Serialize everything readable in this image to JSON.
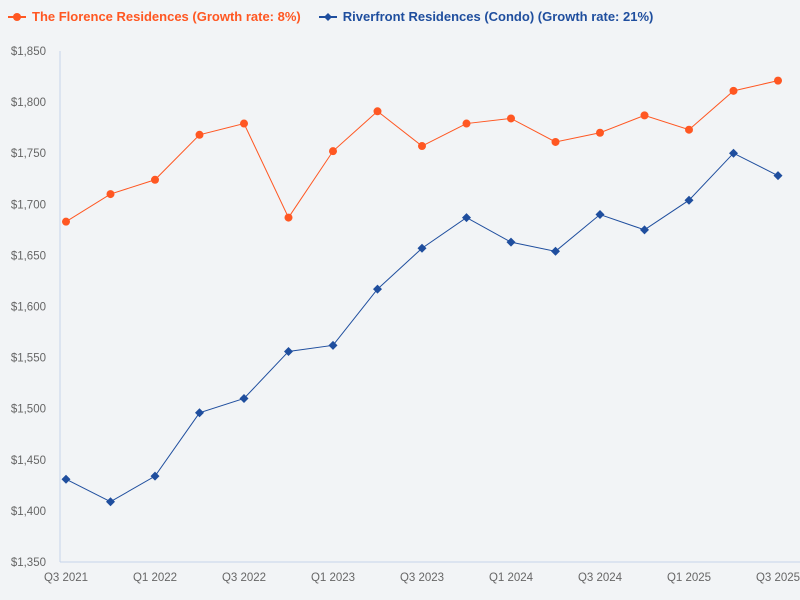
{
  "chart_data": {
    "type": "line",
    "title": "",
    "xlabel": "",
    "ylabel": "",
    "x_ticks": [
      "Q3 2021",
      "Q1 2022",
      "Q3 2022",
      "Q1 2023",
      "Q3 2023",
      "Q1 2024",
      "Q3 2024",
      "Q1 2025",
      "Q3 2025"
    ],
    "ylim": [
      1350,
      1850
    ],
    "y_ticks": [
      "$1,350",
      "$1,400",
      "$1,450",
      "$1,500",
      "$1,550",
      "$1,600",
      "$1,650",
      "$1,700",
      "$1,750",
      "$1,800",
      "$1,850"
    ],
    "grid": false,
    "legend_position": "top-left",
    "series": [
      {
        "name": "The Florence Residences (Growth rate: 8%)",
        "color": "#ff5722",
        "marker": "circle",
        "values": [
          1683,
          1710,
          1724,
          1768,
          1779,
          1687,
          1752,
          1791,
          1757,
          1779,
          1784,
          1761,
          1770,
          1787,
          1773,
          1811,
          1821
        ]
      },
      {
        "name": "Riverfront Residences (Condo) (Growth rate: 21%)",
        "color": "#1f4e9e",
        "marker": "diamond",
        "values": [
          1431,
          1409,
          1434,
          1496,
          1510,
          1556,
          1562,
          1617,
          1657,
          1687,
          1663,
          1654,
          1690,
          1675,
          1704,
          1750,
          1728
        ]
      }
    ]
  }
}
